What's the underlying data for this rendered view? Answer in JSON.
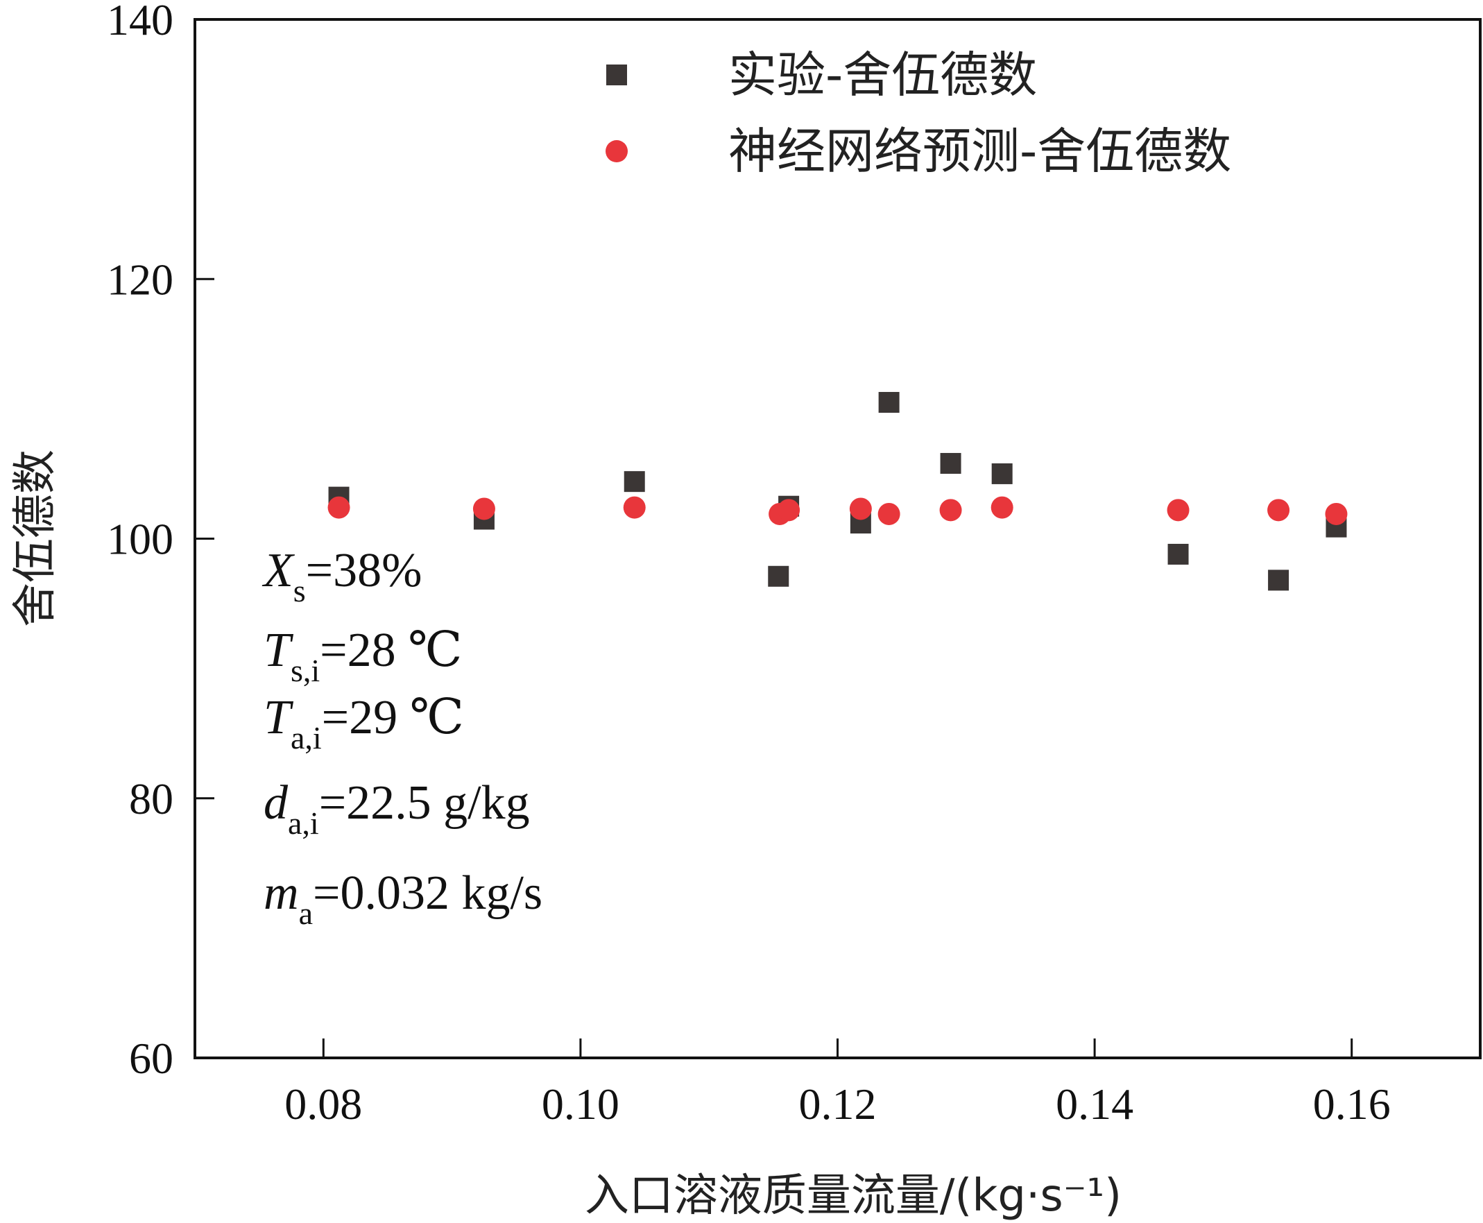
{
  "chart_data": {
    "type": "scatter",
    "xlabel": "入口溶液质量流量/(kg·s⁻¹)",
    "ylabel": "舍伍德数",
    "xlim": [
      0.07,
      0.17
    ],
    "ylim": [
      60,
      140
    ],
    "xticks": [
      "0.08",
      "0.10",
      "0.12",
      "0.14",
      "0.16"
    ],
    "yticks": [
      "60",
      "80",
      "100",
      "120",
      "140"
    ],
    "grid": false,
    "legend_position": "top-center",
    "series": [
      {
        "name": "实验-舍伍德数",
        "marker": "square",
        "color": "#3b3635",
        "points": [
          [
            0.0812,
            103.2
          ],
          [
            0.0925,
            101.5
          ],
          [
            0.1042,
            104.4
          ],
          [
            0.1154,
            97.1
          ],
          [
            0.1162,
            102.5
          ],
          [
            0.1218,
            101.2
          ],
          [
            0.124,
            110.5
          ],
          [
            0.1288,
            105.8
          ],
          [
            0.1328,
            105.0
          ],
          [
            0.1465,
            98.8
          ],
          [
            0.1543,
            96.8
          ],
          [
            0.1588,
            100.9
          ]
        ]
      },
      {
        "name": "神经网络预测-舍伍德数",
        "marker": "circle",
        "color": "#e8363b",
        "points": [
          [
            0.0812,
            102.4
          ],
          [
            0.0925,
            102.3
          ],
          [
            0.1042,
            102.4
          ],
          [
            0.1155,
            101.9
          ],
          [
            0.1162,
            102.2
          ],
          [
            0.1218,
            102.3
          ],
          [
            0.124,
            101.9
          ],
          [
            0.1288,
            102.2
          ],
          [
            0.1328,
            102.4
          ],
          [
            0.1465,
            102.2
          ],
          [
            0.1543,
            102.2
          ],
          [
            0.1588,
            101.9
          ]
        ]
      }
    ],
    "annotations": [
      {
        "var": "X",
        "sub": "s",
        "rest": "=38%"
      },
      {
        "var": "T",
        "sub": "s,i",
        "rest": "=28 ℃"
      },
      {
        "var": "T",
        "sub": "a,i",
        "rest": "=29 ℃"
      },
      {
        "var": "d",
        "sub": "a,i",
        "rest": "=22.5 g/kg"
      },
      {
        "var": "m",
        "sub": "a",
        "rest": "=0.032 kg/s"
      }
    ]
  }
}
